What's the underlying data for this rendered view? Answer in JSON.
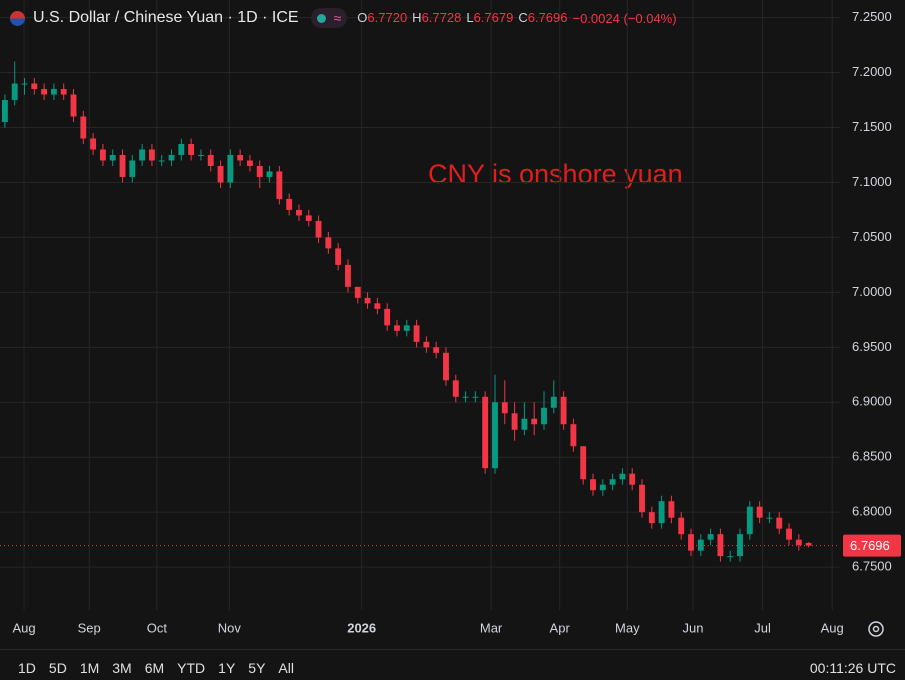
{
  "header": {
    "symbol": "U.S. Dollar / Chinese Yuan · 1D · ICE",
    "ohlc": [
      {
        "label": "O",
        "value": "6.7720"
      },
      {
        "label": "H",
        "value": "6.7728"
      },
      {
        "label": "L",
        "value": "6.7679"
      },
      {
        "label": "C",
        "value": "6.7696"
      }
    ],
    "change": "−0.0024 (−0.04%)"
  },
  "chart_data": {
    "type": "candlestick",
    "annotation": "CNY is onshore yuan",
    "up_color": "#089981",
    "down_color": "#f23645",
    "grid": true,
    "ylim": [
      6.711,
      7.266
    ],
    "yticks": [
      {
        "value": 6.75,
        "label": "6.7500"
      },
      {
        "value": 6.8,
        "label": "6.8000"
      },
      {
        "value": 6.85,
        "label": "6.8500"
      },
      {
        "value": 6.9,
        "label": "6.9000"
      },
      {
        "value": 6.95,
        "label": "6.9500"
      },
      {
        "value": 7.0,
        "label": "7.0000"
      },
      {
        "value": 7.05,
        "label": "7.0500"
      },
      {
        "value": 7.1,
        "label": "7.1000"
      },
      {
        "value": 7.15,
        "label": "7.1500"
      },
      {
        "value": 7.2,
        "label": "7.2000"
      },
      {
        "value": 7.25,
        "label": "7.2500"
      }
    ],
    "xlim": [
      -0.5,
      85.2
    ],
    "xticks": [
      {
        "value": 1.95,
        "label": "Aug"
      },
      {
        "value": 8.6,
        "label": "Sep"
      },
      {
        "value": 15.5,
        "label": "Oct"
      },
      {
        "value": 22.9,
        "label": "Nov"
      },
      {
        "value": 36.4,
        "label": "2026"
      },
      {
        "value": 49.6,
        "label": "Mar"
      },
      {
        "value": 56.6,
        "label": "Apr"
      },
      {
        "value": 63.5,
        "label": "May"
      },
      {
        "value": 70.2,
        "label": "Jun"
      },
      {
        "value": 77.3,
        "label": "Jul"
      },
      {
        "value": 84.4,
        "label": "Aug"
      }
    ],
    "last_price": 6.7696,
    "open": [
      7.155,
      7.175,
      7.19,
      7.19,
      7.185,
      7.18,
      7.185,
      7.18,
      7.16,
      7.14,
      7.13,
      7.12,
      7.125,
      7.105,
      7.12,
      7.13,
      7.12,
      7.12,
      7.125,
      7.135,
      7.125,
      7.125,
      7.115,
      7.1,
      7.125,
      7.12,
      7.115,
      7.105,
      7.11,
      7.085,
      7.075,
      7.07,
      7.065,
      7.05,
      7.04,
      7.025,
      7.005,
      6.995,
      6.99,
      6.985,
      6.97,
      6.965,
      6.97,
      6.955,
      6.95,
      6.945,
      6.92,
      6.905,
      6.905,
      6.905,
      6.84,
      6.9,
      6.89,
      6.875,
      6.885,
      6.88,
      6.895,
      6.905,
      6.88,
      6.86,
      6.83,
      6.82,
      6.825,
      6.83,
      6.835,
      6.825,
      6.8,
      6.79,
      6.81,
      6.795,
      6.78,
      6.765,
      6.775,
      6.78,
      6.76,
      6.76,
      6.78,
      6.805,
      6.795,
      6.795,
      6.785,
      6.775,
      6.772
    ],
    "high": [
      7.18,
      7.21,
      7.195,
      7.195,
      7.19,
      7.19,
      7.19,
      7.185,
      7.165,
      7.145,
      7.135,
      7.13,
      7.13,
      7.125,
      7.135,
      7.135,
      7.125,
      7.13,
      7.14,
      7.14,
      7.13,
      7.13,
      7.12,
      7.13,
      7.13,
      7.125,
      7.12,
      7.115,
      7.115,
      7.09,
      7.08,
      7.075,
      7.07,
      7.055,
      7.045,
      7.03,
      7.005,
      7.0,
      6.995,
      6.99,
      6.975,
      6.975,
      6.975,
      6.96,
      6.955,
      6.95,
      6.925,
      6.91,
      6.91,
      6.91,
      6.925,
      6.92,
      6.9,
      6.9,
      6.9,
      6.91,
      6.92,
      6.91,
      6.885,
      6.86,
      6.835,
      6.83,
      6.835,
      6.84,
      6.84,
      6.83,
      6.805,
      6.815,
      6.815,
      6.8,
      6.785,
      6.78,
      6.785,
      6.785,
      6.765,
      6.785,
      6.81,
      6.81,
      6.8,
      6.8,
      6.79,
      6.78,
      6.7728
    ],
    "low": [
      7.15,
      7.17,
      7.18,
      7.18,
      7.175,
      7.175,
      7.175,
      7.155,
      7.135,
      7.125,
      7.115,
      7.115,
      7.1,
      7.1,
      7.115,
      7.115,
      7.115,
      7.115,
      7.12,
      7.12,
      7.12,
      7.11,
      7.095,
      7.095,
      7.115,
      7.11,
      7.095,
      7.1,
      7.08,
      7.07,
      7.065,
      7.06,
      7.045,
      7.035,
      7.02,
      7.0,
      6.99,
      6.985,
      6.98,
      6.965,
      6.96,
      6.96,
      6.95,
      6.945,
      6.94,
      6.915,
      6.9,
      6.9,
      6.9,
      6.835,
      6.835,
      6.88,
      6.865,
      6.87,
      6.87,
      6.875,
      6.89,
      6.875,
      6.855,
      6.825,
      6.815,
      6.815,
      6.82,
      6.825,
      6.82,
      6.795,
      6.785,
      6.785,
      6.79,
      6.775,
      6.76,
      6.76,
      6.77,
      6.755,
      6.755,
      6.755,
      6.775,
      6.79,
      6.79,
      6.78,
      6.77,
      6.765,
      6.7679
    ],
    "close": [
      7.175,
      7.19,
      7.19,
      7.185,
      7.18,
      7.185,
      7.18,
      7.16,
      7.14,
      7.13,
      7.12,
      7.125,
      7.105,
      7.12,
      7.13,
      7.12,
      7.12,
      7.125,
      7.135,
      7.125,
      7.125,
      7.115,
      7.1,
      7.125,
      7.12,
      7.115,
      7.105,
      7.11,
      7.085,
      7.075,
      7.07,
      7.065,
      7.05,
      7.04,
      7.025,
      7.005,
      6.995,
      6.99,
      6.985,
      6.97,
      6.965,
      6.97,
      6.955,
      6.95,
      6.945,
      6.92,
      6.905,
      6.905,
      6.905,
      6.84,
      6.9,
      6.89,
      6.875,
      6.885,
      6.88,
      6.895,
      6.905,
      6.88,
      6.86,
      6.83,
      6.82,
      6.825,
      6.83,
      6.835,
      6.825,
      6.8,
      6.79,
      6.81,
      6.795,
      6.78,
      6.765,
      6.775,
      6.78,
      6.76,
      6.76,
      6.78,
      6.805,
      6.795,
      6.795,
      6.785,
      6.775,
      6.77,
      6.7696
    ]
  },
  "toolbar": {
    "ranges": [
      "1D",
      "5D",
      "1M",
      "3M",
      "6M",
      "YTD",
      "1Y",
      "5Y",
      "All"
    ],
    "clock": "00:11:26 UTC"
  }
}
